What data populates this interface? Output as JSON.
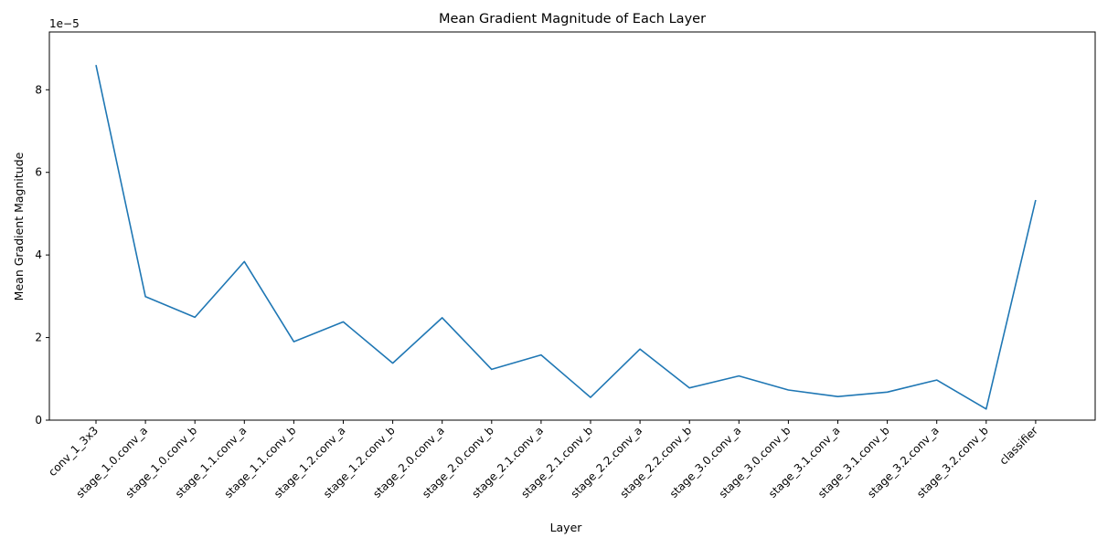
{
  "chart_data": {
    "type": "line",
    "title": "Mean Gradient Magnitude of Each Layer",
    "xlabel": "Layer",
    "ylabel": "Mean Gradient Magnitude",
    "y_offset_label": "1e−5",
    "categories": [
      "conv_1_3x3",
      "stage_1.0.conv_a",
      "stage_1.0.conv_b",
      "stage_1.1.conv_a",
      "stage_1.1.conv_b",
      "stage_1.2.conv_a",
      "stage_1.2.conv_b",
      "stage_2.0.conv_a",
      "stage_2.0.conv_b",
      "stage_2.1.conv_a",
      "stage_2.1.conv_b",
      "stage_2.2.conv_a",
      "stage_2.2.conv_b",
      "stage_3.0.conv_a",
      "stage_3.0.conv_b",
      "stage_3.1.conv_a",
      "stage_3.1.conv_b",
      "stage_3.2.conv_a",
      "stage_3.2.conv_b",
      "classifier"
    ],
    "series": [
      {
        "values": [
          8.6,
          2.99,
          2.49,
          3.84,
          1.9,
          2.38,
          1.38,
          2.48,
          1.23,
          1.58,
          0.55,
          1.72,
          0.78,
          1.07,
          0.73,
          0.57,
          0.68,
          0.97,
          0.27,
          5.33
        ],
        "color": "#1f77b4"
      }
    ],
    "ylim": [
      0,
      9.4
    ],
    "yticks": [
      0,
      2,
      4,
      6,
      8
    ],
    "grid": false,
    "legend": "none"
  }
}
